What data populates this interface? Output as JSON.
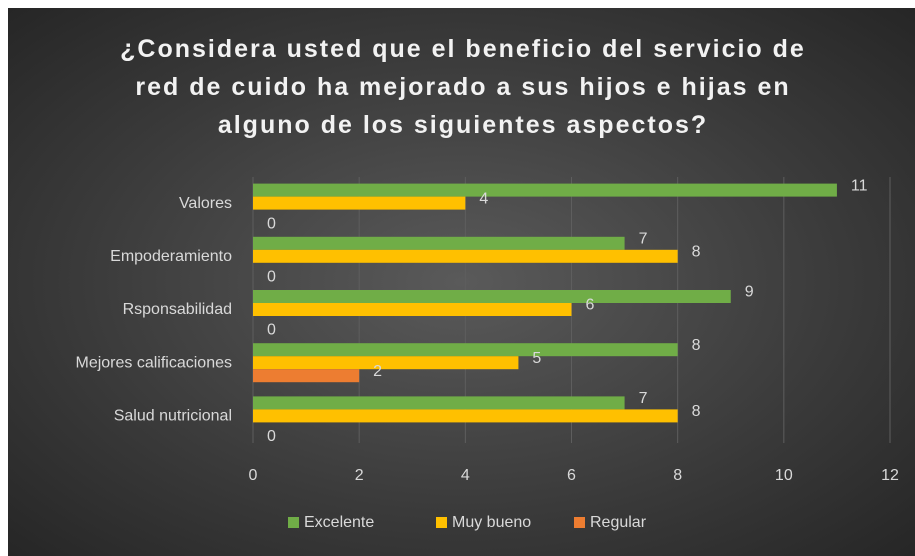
{
  "chart_data": {
    "type": "barh",
    "title": "¿Considera usted que el beneficio del servicio de red de cuido ha mejorado a sus hijos e hijas en alguno de los siguientes aspectos?",
    "categories": [
      "Valores",
      "Empoderamiento",
      "Rsponsabilidad",
      "Mejores calificaciones",
      "Salud nutricional"
    ],
    "series": [
      {
        "name": "Excelente",
        "color": "#70ad47",
        "values": [
          11,
          7,
          9,
          8,
          7
        ]
      },
      {
        "name": "Muy bueno",
        "color": "#ffc000",
        "values": [
          4,
          8,
          6,
          5,
          8
        ]
      },
      {
        "name": "Regular",
        "color": "#ed7d31",
        "values": [
          0,
          0,
          0,
          2,
          0
        ]
      }
    ],
    "xlim": [
      0,
      12
    ],
    "xticks": [
      0,
      2,
      4,
      6,
      8,
      10,
      12
    ],
    "grid": true,
    "legend": "bottom"
  }
}
